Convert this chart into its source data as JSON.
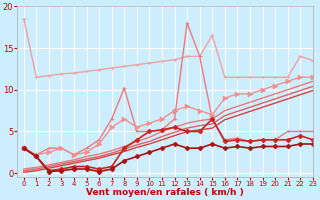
{
  "xlabel": "Vent moyen/en rafales ( km/h )",
  "bg_color": "#cceeff",
  "grid_color": "#ffffff",
  "xlim": [
    -0.5,
    23
  ],
  "ylim": [
    -0.5,
    20
  ],
  "yticks": [
    0,
    5,
    10,
    15,
    20
  ],
  "xticks": [
    0,
    1,
    2,
    3,
    4,
    5,
    6,
    7,
    8,
    9,
    10,
    11,
    12,
    13,
    14,
    15,
    16,
    17,
    18,
    19,
    20,
    21,
    22,
    23
  ],
  "lines": [
    {
      "x": [
        0,
        1,
        2,
        3,
        4,
        5,
        6,
        7,
        8,
        9,
        10,
        11,
        12,
        13,
        14,
        15,
        16,
        17,
        18,
        19,
        20,
        21,
        22,
        23
      ],
      "y": [
        18.5,
        11.5,
        11.7,
        11.9,
        12.0,
        12.2,
        12.4,
        12.6,
        12.8,
        13.0,
        13.2,
        13.4,
        13.6,
        14.0,
        14.0,
        16.5,
        11.5,
        11.5,
        11.5,
        11.5,
        11.5,
        11.5,
        14.0,
        13.5
      ],
      "color": "#f0a0a0",
      "lw": 1.0,
      "marker": "+",
      "ms": 3.5
    },
    {
      "x": [
        0,
        1,
        2,
        3,
        4,
        5,
        6,
        7,
        8,
        9,
        10,
        11,
        12,
        13,
        14,
        15,
        16,
        17,
        18,
        19,
        20,
        21,
        22,
        23
      ],
      "y": [
        3.0,
        2.2,
        3.0,
        3.0,
        2.2,
        3.0,
        4.0,
        6.5,
        10.2,
        5.0,
        5.0,
        5.2,
        6.5,
        18.0,
        14.0,
        6.5,
        4.0,
        4.2,
        3.8,
        4.0,
        4.0,
        5.0,
        5.0,
        5.0
      ],
      "color": "#f07878",
      "lw": 1.0,
      "marker": "+",
      "ms": 3.5
    },
    {
      "x": [
        0,
        1,
        2,
        3,
        4,
        5,
        6,
        7,
        8,
        9,
        10,
        11,
        12,
        13,
        14,
        15,
        16,
        17,
        18,
        19,
        20,
        21,
        22,
        23
      ],
      "y": [
        3.0,
        2.2,
        2.5,
        3.0,
        2.2,
        2.5,
        3.5,
        5.5,
        6.5,
        5.5,
        6.0,
        6.5,
        7.5,
        8.0,
        7.5,
        7.0,
        9.0,
        9.5,
        9.5,
        10.0,
        10.5,
        11.0,
        11.5,
        11.5
      ],
      "color": "#f09090",
      "lw": 1.0,
      "marker": ">",
      "ms": 3.5
    },
    {
      "x": [
        0,
        1,
        2,
        3,
        4,
        5,
        6,
        7,
        8,
        9,
        10,
        11,
        12,
        13,
        14,
        15,
        16,
        17,
        18,
        19,
        20,
        21,
        22,
        23
      ],
      "y": [
        0.5,
        0.7,
        1.0,
        1.3,
        1.6,
        2.0,
        2.3,
        2.7,
        3.2,
        3.8,
        4.3,
        5.0,
        5.5,
        6.0,
        6.3,
        6.5,
        7.5,
        8.0,
        8.5,
        9.0,
        9.5,
        10.0,
        10.5,
        11.0
      ],
      "color": "#e87878",
      "lw": 1.0,
      "marker": null,
      "ms": 0
    },
    {
      "x": [
        0,
        1,
        2,
        3,
        4,
        5,
        6,
        7,
        8,
        9,
        10,
        11,
        12,
        13,
        14,
        15,
        16,
        17,
        18,
        19,
        20,
        21,
        22,
        23
      ],
      "y": [
        0.3,
        0.5,
        0.8,
        1.1,
        1.4,
        1.7,
        2.0,
        2.4,
        2.9,
        3.4,
        3.8,
        4.4,
        4.9,
        5.4,
        5.7,
        5.9,
        6.9,
        7.4,
        7.9,
        8.4,
        8.9,
        9.4,
        9.9,
        10.4
      ],
      "color": "#e06060",
      "lw": 1.0,
      "marker": null,
      "ms": 0
    },
    {
      "x": [
        0,
        1,
        2,
        3,
        4,
        5,
        6,
        7,
        8,
        9,
        10,
        11,
        12,
        13,
        14,
        15,
        16,
        17,
        18,
        19,
        20,
        21,
        22,
        23
      ],
      "y": [
        0.1,
        0.3,
        0.6,
        0.9,
        1.2,
        1.5,
        1.8,
        2.2,
        2.6,
        3.1,
        3.5,
        4.0,
        4.5,
        5.0,
        5.2,
        5.4,
        6.4,
        6.9,
        7.4,
        7.9,
        8.4,
        8.9,
        9.4,
        9.9
      ],
      "color": "#d84040",
      "lw": 1.0,
      "marker": null,
      "ms": 0
    },
    {
      "x": [
        0,
        1,
        2,
        3,
        4,
        5,
        6,
        7,
        8,
        9,
        10,
        11,
        12,
        13,
        14,
        15,
        16,
        17,
        18,
        19,
        20,
        21,
        22,
        23
      ],
      "y": [
        3.0,
        2.0,
        0.3,
        0.5,
        0.8,
        0.8,
        0.5,
        0.8,
        3.0,
        4.0,
        5.0,
        5.2,
        5.5,
        5.0,
        5.0,
        6.5,
        3.8,
        4.0,
        3.8,
        4.0,
        4.0,
        4.0,
        4.5,
        4.0
      ],
      "color": "#cc2222",
      "lw": 1.2,
      "marker": "D",
      "ms": 2.5
    },
    {
      "x": [
        0,
        1,
        2,
        3,
        4,
        5,
        6,
        7,
        8,
        9,
        10,
        11,
        12,
        13,
        14,
        15,
        16,
        17,
        18,
        19,
        20,
        21,
        22,
        23
      ],
      "y": [
        3.0,
        2.0,
        0.2,
        0.3,
        0.5,
        0.5,
        0.2,
        0.5,
        1.5,
        2.0,
        2.5,
        3.0,
        3.5,
        3.0,
        3.0,
        3.5,
        3.0,
        3.2,
        3.0,
        3.2,
        3.2,
        3.2,
        3.5,
        3.5
      ],
      "color": "#aa1111",
      "lw": 1.2,
      "marker": "D",
      "ms": 2.5
    }
  ]
}
